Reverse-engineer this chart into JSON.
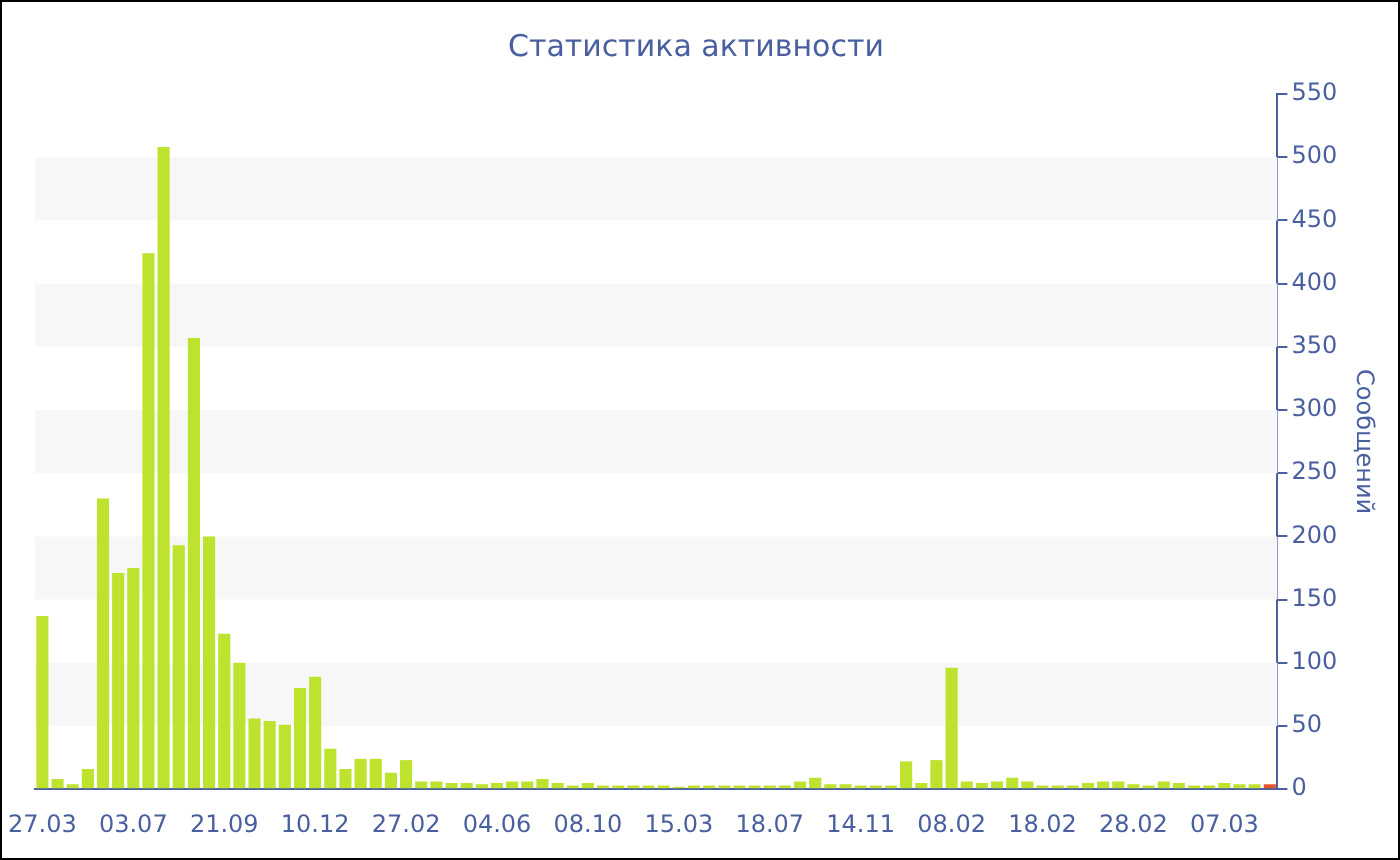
{
  "chart_data": {
    "type": "bar",
    "title": "Статистика активности",
    "ylabel": "Сообщений",
    "categories": [
      "27.03",
      null,
      null,
      null,
      null,
      null,
      "03.07",
      null,
      null,
      null,
      null,
      null,
      "21.09",
      null,
      null,
      null,
      null,
      null,
      "10.12",
      null,
      null,
      null,
      null,
      null,
      "27.02",
      null,
      null,
      null,
      null,
      null,
      "04.06",
      null,
      null,
      null,
      null,
      null,
      "08.10",
      null,
      null,
      null,
      null,
      null,
      "15.03",
      null,
      null,
      null,
      null,
      null,
      "18.07",
      null,
      null,
      null,
      null,
      null,
      "14.11",
      null,
      null,
      null,
      null,
      null,
      "08.02",
      null,
      null,
      null,
      null,
      null,
      "18.02",
      null,
      null,
      null,
      null,
      null,
      "28.02",
      null,
      null,
      null,
      null,
      null,
      "07.03",
      null,
      null,
      null
    ],
    "values": [
      137,
      8,
      4,
      16,
      230,
      171,
      175,
      424,
      508,
      193,
      357,
      200,
      123,
      100,
      56,
      54,
      51,
      80,
      89,
      32,
      16,
      24,
      24,
      13,
      23,
      6,
      6,
      5,
      5,
      4,
      5,
      6,
      6,
      8,
      5,
      3,
      5,
      3,
      3,
      3,
      3,
      3,
      2,
      3,
      3,
      3,
      3,
      3,
      3,
      3,
      6,
      9,
      4,
      4,
      3,
      3,
      3,
      22,
      5,
      23,
      96,
      6,
      5,
      6,
      9,
      6,
      3,
      3,
      3,
      5,
      6,
      6,
      4,
      3,
      6,
      5,
      3,
      3,
      5,
      4,
      4,
      4
    ],
    "colors": [
      "#bde32e",
      "#bde32e",
      "#bde32e",
      "#bde32e",
      "#bde32e",
      "#bde32e",
      "#bde32e",
      "#bde32e",
      "#bde32e",
      "#bde32e",
      "#bde32e",
      "#bde32e",
      "#bde32e",
      "#bde32e",
      "#bde32e",
      "#bde32e",
      "#bde32e",
      "#bde32e",
      "#bde32e",
      "#bde32e",
      "#bde32e",
      "#bde32e",
      "#bde32e",
      "#bde32e",
      "#bde32e",
      "#bde32e",
      "#bde32e",
      "#bde32e",
      "#bde32e",
      "#bde32e",
      "#bde32e",
      "#bde32e",
      "#bde32e",
      "#bde32e",
      "#bde32e",
      "#bde32e",
      "#bde32e",
      "#bde32e",
      "#bde32e",
      "#bde32e",
      "#bde32e",
      "#bde32e",
      "#bde32e",
      "#bde32e",
      "#bde32e",
      "#bde32e",
      "#bde32e",
      "#bde32e",
      "#bde32e",
      "#bde32e",
      "#bde32e",
      "#bde32e",
      "#bde32e",
      "#bde32e",
      "#bde32e",
      "#bde32e",
      "#bde32e",
      "#bde32e",
      "#bde32e",
      "#bde32e",
      "#bde32e",
      "#bde32e",
      "#bde32e",
      "#bde32e",
      "#bde32e",
      "#bde32e",
      "#bde32e",
      "#bde32e",
      "#bde32e",
      "#bde32e",
      "#bde32e",
      "#bde32e",
      "#bde32e",
      "#bde32e",
      "#bde32e",
      "#bde32e",
      "#bde32e",
      "#bde32e",
      "#bde32e",
      "#bde32e",
      "#bde32e",
      "#e8542a"
    ],
    "ylim": [
      0,
      550
    ],
    "yticks": [
      0,
      50,
      100,
      150,
      200,
      250,
      300,
      350,
      400,
      450,
      500,
      550
    ],
    "bands": [
      {
        "axis": "y",
        "from": 50,
        "to": 100,
        "color": "#f7f7f7"
      },
      {
        "axis": "y",
        "from": 150,
        "to": 200,
        "color": "#f7f7f7"
      },
      {
        "axis": "y",
        "from": 250,
        "to": 300,
        "color": "#f7f7f7"
      },
      {
        "axis": "y",
        "from": 350,
        "to": 400,
        "color": "#f7f7f7"
      },
      {
        "axis": "y",
        "from": 450,
        "to": 500,
        "color": "#f7f7f7"
      }
    ]
  }
}
